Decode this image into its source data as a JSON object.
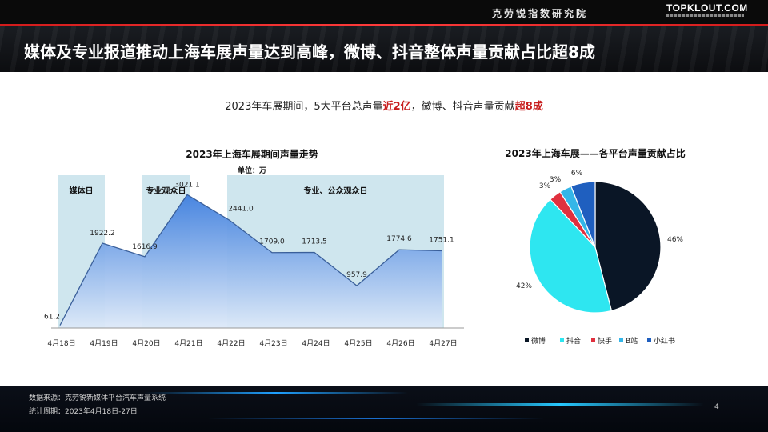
{
  "header": {
    "institute": "克劳锐指数研究院",
    "logo": "TOPKLOUT.COM"
  },
  "title": "媒体及专业报道推动上海车展声量达到高峰，微博、抖音整体声量贡献占比超8成",
  "subtitle": {
    "part1": "2023年车展期间，5大平台总声量",
    "hl1": "近2亿",
    "part2": "，微博、抖音声量贡献",
    "hl2": "超8成"
  },
  "colors": {
    "accent_red": "#c81e1e",
    "line": "#3a5f9a",
    "area_top": "#3f7fde",
    "area_bottom": "#dde9f8",
    "band": "#cfe6ee"
  },
  "chart_data": [
    {
      "type": "area",
      "title": "2023年上海车展期间声量走势",
      "unit": "单位：万",
      "categories": [
        "4月18日",
        "4月19日",
        "4月20日",
        "4月21日",
        "4月22日",
        "4月23日",
        "4月24日",
        "4月25日",
        "4月26日",
        "4月27日"
      ],
      "values": [
        61.2,
        1922.2,
        1616.9,
        3021.1,
        2441.0,
        1709.0,
        1713.5,
        957.9,
        1774.6,
        1751.1
      ],
      "labels": [
        "61.2",
        "1922.2",
        "1616.9",
        "3021.1",
        "2441.0",
        "1709.0",
        "1713.5",
        "957.9",
        "1774.6",
        "1751.1"
      ],
      "ylim": [
        0,
        3300
      ],
      "bands": [
        {
          "label": "媒体日",
          "from": 0,
          "to": 1
        },
        {
          "label": "专业观众日",
          "from": 2,
          "to": 3
        },
        {
          "label": "专业、公众观众日",
          "from": 4,
          "to": 9
        }
      ]
    },
    {
      "type": "pie",
      "title": "2023年上海车展——各平台声量贡献占比",
      "slices": [
        {
          "name": "微博",
          "value": 46,
          "label": "46%",
          "color": "#0a1626"
        },
        {
          "name": "抖音",
          "value": 42,
          "label": "42%",
          "color": "#2ee6f0"
        },
        {
          "name": "快手",
          "value": 3,
          "label": "3%",
          "color": "#e0303e"
        },
        {
          "name": "B站",
          "value": 3,
          "label": "3%",
          "color": "#34b6e8"
        },
        {
          "name": "小红书",
          "value": 6,
          "label": "6%",
          "color": "#1f5fbf"
        }
      ]
    }
  ],
  "footer": {
    "source": "数据来源：克劳锐新媒体平台汽车声量系统",
    "period": "统计周期：2023年4月18日-27日",
    "page": "4"
  }
}
